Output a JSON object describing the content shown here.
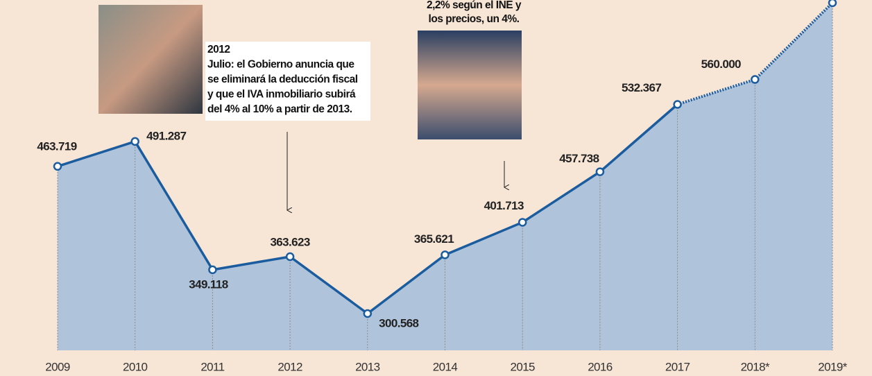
{
  "chart_data": {
    "type": "line",
    "categories": [
      "2009",
      "2010",
      "2011",
      "2012",
      "2013",
      "2014",
      "2015",
      "2016",
      "2017",
      "2018*",
      "2019*"
    ],
    "values": [
      463719,
      491287,
      349118,
      363623,
      300568,
      365621,
      401713,
      457738,
      532367,
      560000,
      645000
    ],
    "value_labels": [
      "463.719",
      "491.287",
      "349.118",
      "363.623",
      "300.568",
      "365.621",
      "401.713",
      "457.738",
      "532.367",
      "560.000",
      null
    ],
    "color": "#1a5c9e",
    "area_color": "#afc3db",
    "dashed_after": 8,
    "annotations": [
      {
        "lines": [
          "2012",
          "Julio: el Gobierno anuncia que",
          "se eliminará la deducción fiscal",
          "y que el IVA inmobiliario subirá",
          "del 4% al 10% a partir de 2013."
        ]
      },
      {
        "lines": [
          "2,2% según el INE y",
          "los precios, un 4%."
        ]
      }
    ]
  }
}
